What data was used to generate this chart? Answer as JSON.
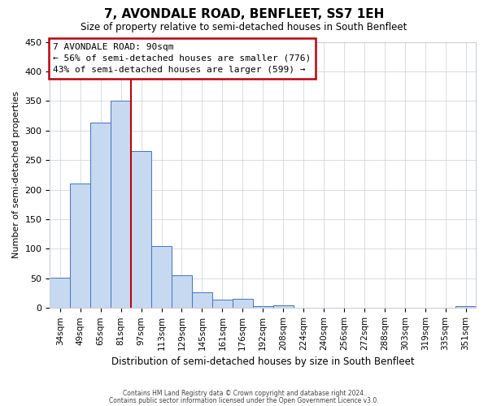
{
  "title": "7, AVONDALE ROAD, BENFLEET, SS7 1EH",
  "subtitle": "Size of property relative to semi-detached houses in South Benfleet",
  "xlabel": "Distribution of semi-detached houses by size in South Benfleet",
  "ylabel": "Number of semi-detached properties",
  "bar_labels": [
    "34sqm",
    "49sqm",
    "65sqm",
    "81sqm",
    "97sqm",
    "113sqm",
    "129sqm",
    "145sqm",
    "161sqm",
    "176sqm",
    "192sqm",
    "208sqm",
    "224sqm",
    "240sqm",
    "256sqm",
    "272sqm",
    "288sqm",
    "303sqm",
    "319sqm",
    "335sqm",
    "351sqm"
  ],
  "bar_values": [
    51,
    211,
    313,
    350,
    265,
    105,
    55,
    26,
    14,
    16,
    3,
    5,
    0,
    0,
    0,
    0,
    0,
    0,
    0,
    0,
    3
  ],
  "bar_color": "#c6d9f0",
  "bar_edge_color": "#4472c4",
  "vline_x_index": 3.5,
  "vline_color": "#c0000a",
  "ylim": [
    0,
    450
  ],
  "yticks": [
    0,
    50,
    100,
    150,
    200,
    250,
    300,
    350,
    400,
    450
  ],
  "annotation_title": "7 AVONDALE ROAD: 90sqm",
  "annotation_line1": "← 56% of semi-detached houses are smaller (776)",
  "annotation_line2": "43% of semi-detached houses are larger (599) →",
  "annotation_box_color": "#ffffff",
  "annotation_box_edge": "#c0000a",
  "footer1": "Contains HM Land Registry data © Crown copyright and database right 2024.",
  "footer2": "Contains public sector information licensed under the Open Government Licence v3.0.",
  "background_color": "#ffffff",
  "grid_color": "#c8d0d8"
}
